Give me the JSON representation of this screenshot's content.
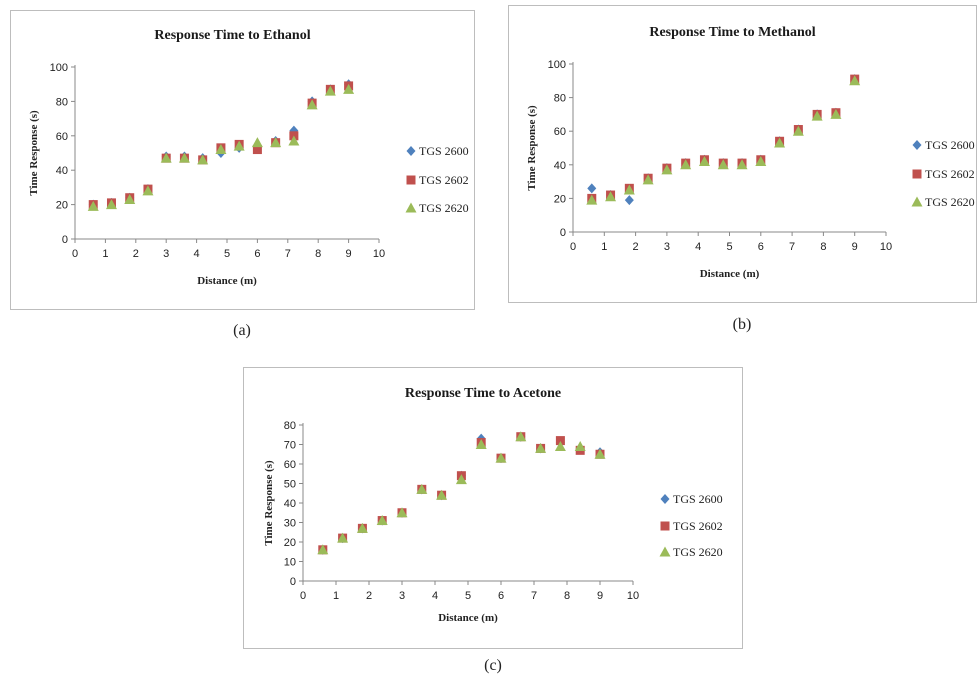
{
  "colors": {
    "TGS 2600": "#4f81bd",
    "TGS 2602": "#c0504d",
    "TGS 2620": "#9bbb59"
  },
  "chart_data": [
    {
      "type": "scatter",
      "title": "Response Time to Ethanol",
      "xlabel": "Distance (m)",
      "ylabel": "Time Response (s)",
      "xlim": [
        0,
        10
      ],
      "ylim": [
        0,
        100
      ],
      "xticks": [
        0,
        1,
        2,
        3,
        4,
        5,
        6,
        7,
        8,
        9,
        10
      ],
      "yticks": [
        0,
        20,
        40,
        60,
        80,
        100
      ],
      "legend_position": "right",
      "caption": "(a)",
      "series": [
        {
          "name": "TGS 2600",
          "marker": "diamond",
          "x": [
            0.6,
            1.2,
            1.8,
            2.4,
            3,
            3.6,
            4.2,
            4.8,
            5.4,
            6,
            6.6,
            7.2,
            7.8,
            8.4,
            9
          ],
          "y": [
            20,
            21,
            24,
            29,
            48,
            48,
            47,
            50,
            53,
            53,
            57,
            63,
            80,
            87,
            90
          ]
        },
        {
          "name": "TGS 2602",
          "marker": "square",
          "x": [
            0.6,
            1.2,
            1.8,
            2.4,
            3,
            3.6,
            4.2,
            4.8,
            5.4,
            6,
            6.6,
            7.2,
            7.8,
            8.4,
            9
          ],
          "y": [
            20,
            21,
            24,
            29,
            47,
            47,
            46,
            53,
            55,
            52,
            56,
            60,
            79,
            87,
            89
          ]
        },
        {
          "name": "TGS 2620",
          "marker": "triangle",
          "x": [
            0.6,
            1.2,
            1.8,
            2.4,
            3,
            3.6,
            4.2,
            4.8,
            5.4,
            6,
            6.6,
            7.2,
            7.8,
            8.4,
            9
          ],
          "y": [
            19,
            20,
            23,
            28,
            47,
            47,
            46,
            52,
            54,
            56,
            56,
            57,
            78,
            86,
            87
          ]
        }
      ]
    },
    {
      "type": "scatter",
      "title": "Response Time to Methanol",
      "xlabel": "Distance (m)",
      "ylabel": "Time Response (s)",
      "xlim": [
        0,
        10
      ],
      "ylim": [
        0,
        100
      ],
      "xticks": [
        0,
        1,
        2,
        3,
        4,
        5,
        6,
        7,
        8,
        9,
        10
      ],
      "yticks": [
        0,
        20,
        40,
        60,
        80,
        100
      ],
      "legend_position": "right",
      "caption": "(b)",
      "series": [
        {
          "name": "TGS 2600",
          "marker": "diamond",
          "x": [
            0.6,
            1.2,
            1.8,
            2.4,
            3,
            3.6,
            4.2,
            4.8,
            5.4,
            6,
            6.6,
            7.2,
            7.8,
            8.4,
            9
          ],
          "y": [
            26,
            22,
            19,
            32,
            38,
            41,
            43,
            41,
            41,
            43,
            54,
            61,
            70,
            71,
            91
          ]
        },
        {
          "name": "TGS 2602",
          "marker": "square",
          "x": [
            0.6,
            1.2,
            1.8,
            2.4,
            3,
            3.6,
            4.2,
            4.8,
            5.4,
            6,
            6.6,
            7.2,
            7.8,
            8.4,
            9
          ],
          "y": [
            20,
            22,
            26,
            32,
            38,
            41,
            43,
            41,
            41,
            43,
            54,
            61,
            70,
            71,
            91
          ]
        },
        {
          "name": "TGS 2620",
          "marker": "triangle",
          "x": [
            0.6,
            1.2,
            1.8,
            2.4,
            3,
            3.6,
            4.2,
            4.8,
            5.4,
            6,
            6.6,
            7.2,
            7.8,
            8.4,
            9
          ],
          "y": [
            19,
            21,
            25,
            31,
            37,
            40,
            42,
            40,
            40,
            42,
            53,
            60,
            69,
            70,
            90
          ]
        }
      ]
    },
    {
      "type": "scatter",
      "title": "Response Time to Acetone",
      "xlabel": "Distance (m)",
      "ylabel": "Time Response (s)",
      "xlim": [
        0,
        10
      ],
      "ylim": [
        0,
        80
      ],
      "xticks": [
        0,
        1,
        2,
        3,
        4,
        5,
        6,
        7,
        8,
        9,
        10
      ],
      "yticks": [
        0,
        10,
        20,
        30,
        40,
        50,
        60,
        70,
        80
      ],
      "legend_position": "right",
      "caption": "(c)",
      "series": [
        {
          "name": "TGS 2600",
          "marker": "diamond",
          "x": [
            0.6,
            1.2,
            1.8,
            2.4,
            3,
            3.6,
            4.2,
            4.8,
            5.4,
            6,
            6.6,
            7.2,
            7.8,
            8.4,
            9
          ],
          "y": [
            16,
            22,
            27,
            31,
            35,
            47,
            44,
            54,
            73,
            63,
            74,
            68,
            71,
            68,
            66
          ]
        },
        {
          "name": "TGS 2602",
          "marker": "square",
          "x": [
            0.6,
            1.2,
            1.8,
            2.4,
            3,
            3.6,
            4.2,
            4.8,
            5.4,
            6,
            6.6,
            7.2,
            7.8,
            8.4,
            9
          ],
          "y": [
            16,
            22,
            27,
            31,
            35,
            47,
            44,
            54,
            71,
            63,
            74,
            68,
            72,
            67,
            65
          ]
        },
        {
          "name": "TGS 2620",
          "marker": "triangle",
          "x": [
            0.6,
            1.2,
            1.8,
            2.4,
            3,
            3.6,
            4.2,
            4.8,
            5.4,
            6,
            6.6,
            7.2,
            7.8,
            8.4,
            9
          ],
          "y": [
            16,
            22,
            27,
            31,
            35,
            47,
            44,
            52,
            70,
            63,
            74,
            68,
            69,
            69,
            65
          ]
        }
      ]
    }
  ]
}
